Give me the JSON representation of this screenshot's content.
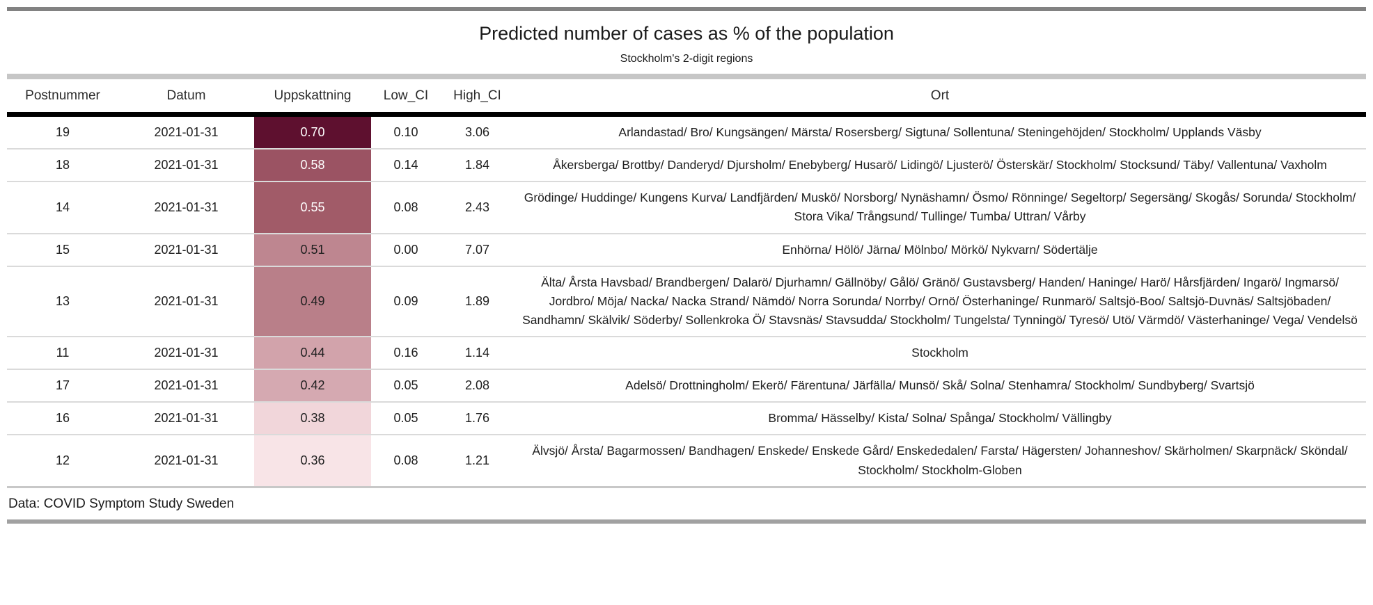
{
  "header": {
    "title": "Predicted number of cases as % of the population",
    "subtitle": "Stockholm's 2-digit regions"
  },
  "footer": {
    "source": "Data: COVID Symptom Study Sweden"
  },
  "table": {
    "columns": [
      "Postnummer",
      "Datum",
      "Uppskattning",
      "Low_CI",
      "High_CI",
      "Ort"
    ],
    "heat_colors": {
      "darkest": "#5E102F",
      "lightest": "#F8E4E7"
    },
    "rows": [
      {
        "postnummer": "19",
        "datum": "2021-01-31",
        "uppskattning": "0.70",
        "low_ci": "0.10",
        "high_ci": "3.06",
        "ort": "Arlandastad/ Bro/ Kungsängen/ Märsta/ Rosersberg/ Sigtuna/ Sollentuna/ Steningehöjden/ Stockholm/ Upplands Väsby",
        "cell_color": "#5E102F",
        "text_color": "#FFFFFF"
      },
      {
        "postnummer": "18",
        "datum": "2021-01-31",
        "uppskattning": "0.58",
        "low_ci": "0.14",
        "high_ci": "1.84",
        "ort": "Åkersberga/ Brottby/ Danderyd/ Djursholm/ Enebyberg/ Husarö/ Lidingö/ Ljusterö/ Österskär/ Stockholm/ Stocksund/ Täby/ Vallentuna/ Vaxholm",
        "cell_color": "#9B5363",
        "text_color": "#FFFFFF"
      },
      {
        "postnummer": "14",
        "datum": "2021-01-31",
        "uppskattning": "0.55",
        "low_ci": "0.08",
        "high_ci": "2.43",
        "ort": "Grödinge/ Huddinge/ Kungens Kurva/ Landfjärden/ Muskö/ Norsborg/ Nynäshamn/ Ösmo/ Rönninge/ Segeltorp/ Segersäng/ Skogås/ Sorunda/ Stockholm/ Stora Vika/ Trångsund/ Tullinge/ Tumba/ Uttran/ Vårby",
        "cell_color": "#A15B68",
        "text_color": "#FFFFFF"
      },
      {
        "postnummer": "15",
        "datum": "2021-01-31",
        "uppskattning": "0.51",
        "low_ci": "0.00",
        "high_ci": "7.07",
        "ort": "Enhörna/ Hölö/ Järna/ Mölnbo/ Mörkö/ Nykvarn/ Södertälje",
        "cell_color": "#BE8690",
        "text_color": "#202020"
      },
      {
        "postnummer": "13",
        "datum": "2021-01-31",
        "uppskattning": "0.49",
        "low_ci": "0.09",
        "high_ci": "1.89",
        "ort": "Älta/ Årsta Havsbad/ Brandbergen/ Dalarö/ Djurhamn/ Gällnöby/ Gålö/ Gränö/ Gustavsberg/ Handen/ Haninge/ Harö/ Hårsfjärden/ Ingarö/ Ingmarsö/ Jordbro/ Möja/ Nacka/ Nacka Strand/ Nämdö/ Norra Sorunda/ Norrby/ Ornö/ Österhaninge/ Runmarö/ Saltsjö-Boo/ Saltsjö-Duvnäs/ Saltsjöbaden/ Sandhamn/ Skälvik/ Söderby/ Sollenkroka Ö/ Stavsnäs/ Stavsudda/ Stockholm/ Tungelsta/ Tynningö/ Tyresö/ Utö/ Värmdö/ Västerhaninge/ Vega/ Vendelsö",
        "cell_color": "#B97F89",
        "text_color": "#202020"
      },
      {
        "postnummer": "11",
        "datum": "2021-01-31",
        "uppskattning": "0.44",
        "low_ci": "0.16",
        "high_ci": "1.14",
        "ort": "Stockholm",
        "cell_color": "#D2A3AB",
        "text_color": "#202020"
      },
      {
        "postnummer": "17",
        "datum": "2021-01-31",
        "uppskattning": "0.42",
        "low_ci": "0.05",
        "high_ci": "2.08",
        "ort": "Adelsö/ Drottningholm/ Ekerö/ Färentuna/ Järfälla/ Munsö/ Skå/ Solna/ Stenhamra/ Stockholm/ Sundbyberg/ Svartsjö",
        "cell_color": "#D5A9B1",
        "text_color": "#202020"
      },
      {
        "postnummer": "16",
        "datum": "2021-01-31",
        "uppskattning": "0.38",
        "low_ci": "0.05",
        "high_ci": "1.76",
        "ort": "Bromma/ Hässelby/ Kista/ Solna/ Spånga/ Stockholm/ Vällingby",
        "cell_color": "#F1D6DA",
        "text_color": "#202020"
      },
      {
        "postnummer": "12",
        "datum": "2021-01-31",
        "uppskattning": "0.36",
        "low_ci": "0.08",
        "high_ci": "1.21",
        "ort": "Älvsjö/ Årsta/ Bagarmossen/ Bandhagen/ Enskede/ Enskede Gård/ Enskededalen/ Farsta/ Hägersten/ Johanneshov/ Skärholmen/ Skarpnäck/ Sköndal/ Stockholm/ Stockholm-Globen",
        "cell_color": "#F8E4E7",
        "text_color": "#202020"
      }
    ]
  },
  "chart_data": {
    "type": "table",
    "title": "Predicted number of cases as % of the population",
    "subtitle": "Stockholm's 2-digit regions",
    "source": "Data: COVID Symptom Study Sweden",
    "columns": [
      "Postnummer",
      "Datum",
      "Uppskattning",
      "Low_CI",
      "High_CI",
      "Ort"
    ],
    "heat_column": "Uppskattning",
    "heat_scale": {
      "min": 0.36,
      "max": 0.7,
      "low_color": "#F8E4E7",
      "high_color": "#5E102F"
    },
    "rows": [
      [
        19,
        "2021-01-31",
        0.7,
        0.1,
        3.06,
        "Arlandastad/ Bro/ Kungsängen/ Märsta/ Rosersberg/ Sigtuna/ Sollentuna/ Steningehöjden/ Stockholm/ Upplands Väsby"
      ],
      [
        18,
        "2021-01-31",
        0.58,
        0.14,
        1.84,
        "Åkersberga/ Brottby/ Danderyd/ Djursholm/ Enebyberg/ Husarö/ Lidingö/ Ljusterö/ Österskär/ Stockholm/ Stocksund/ Täby/ Vallentuna/ Vaxholm"
      ],
      [
        14,
        "2021-01-31",
        0.55,
        0.08,
        2.43,
        "Grödinge/ Huddinge/ Kungens Kurva/ Landfjärden/ Muskö/ Norsborg/ Nynäshamn/ Ösmo/ Rönninge/ Segeltorp/ Segersäng/ Skogås/ Sorunda/ Stockholm/ Stora Vika/ Trångsund/ Tullinge/ Tumba/ Uttran/ Vårby"
      ],
      [
        15,
        "2021-01-31",
        0.51,
        0.0,
        7.07,
        "Enhörna/ Hölö/ Järna/ Mölnbo/ Mörkö/ Nykvarn/ Södertälje"
      ],
      [
        13,
        "2021-01-31",
        0.49,
        0.09,
        1.89,
        "Älta/ Årsta Havsbad/ Brandbergen/ Dalarö/ Djurhamn/ Gällnöby/ Gålö/ Gränö/ Gustavsberg/ Handen/ Haninge/ Harö/ Hårsfjärden/ Ingarö/ Ingmarsö/ Jordbro/ Möja/ Nacka/ Nacka Strand/ Nämdö/ Norra Sorunda/ Norrby/ Ornö/ Österhaninge/ Runmarö/ Saltsjö-Boo/ Saltsjö-Duvnäs/ Saltsjöbaden/ Sandhamn/ Skälvik/ Söderby/ Sollenkroka Ö/ Stavsnäs/ Stavsudda/ Stockholm/ Tungelsta/ Tynningö/ Tyresö/ Utö/ Värmdö/ Västerhaninge/ Vega/ Vendelsö"
      ],
      [
        11,
        "2021-01-31",
        0.44,
        0.16,
        1.14,
        "Stockholm"
      ],
      [
        17,
        "2021-01-31",
        0.42,
        0.05,
        2.08,
        "Adelsö/ Drottningholm/ Ekerö/ Färentuna/ Järfälla/ Munsö/ Skå/ Solna/ Stenhamra/ Stockholm/ Sundbyberg/ Svartsjö"
      ],
      [
        16,
        "2021-01-31",
        0.38,
        0.05,
        1.76,
        "Bromma/ Hässelby/ Kista/ Solna/ Spånga/ Stockholm/ Vällingby"
      ],
      [
        12,
        "2021-01-31",
        0.36,
        0.08,
        1.21,
        "Älvsjö/ Årsta/ Bagarmossen/ Bandhagen/ Enskede/ Enskede Gård/ Enskededalen/ Farsta/ Hägersten/ Johanneshov/ Skärholmen/ Skarpnäck/ Sköndal/ Stockholm/ Stockholm-Globen"
      ]
    ]
  }
}
